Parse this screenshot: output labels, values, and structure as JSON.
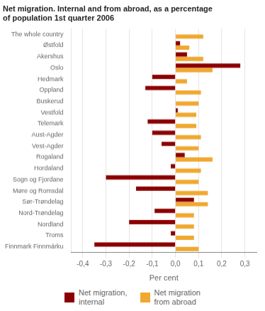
{
  "chart_data": {
    "type": "bar",
    "orientation": "horizontal",
    "title": "Net migration. Internal and from abroad, as a percentage\nof population 1st quarter 2006",
    "categories": [
      "The whole country",
      "Østfold",
      "Akershus",
      "Oslo",
      "Hedmark",
      "Oppland",
      "Buskerud",
      "Vestfold",
      "Telemark",
      "Aust-Agder",
      "Vest-Agder",
      "Rogaland",
      "Hordaland",
      "Sogn og Fjordane",
      "Møre og Romsdal",
      "Sør-Trøndelag",
      "Nord-Trøndelag",
      "Nordland",
      "Troms",
      "Finnmark Finnmárku"
    ],
    "series": [
      {
        "name": "Net migration,\ninternal",
        "color": "#8B0000",
        "values": [
          0.0,
          0.02,
          0.05,
          0.28,
          -0.1,
          -0.13,
          0.0,
          0.01,
          -0.12,
          -0.1,
          -0.06,
          0.04,
          -0.02,
          -0.3,
          -0.17,
          0.08,
          -0.09,
          -0.2,
          -0.02,
          -0.35
        ]
      },
      {
        "name": "Net migration\nfrom abroad",
        "color": "#F0A830",
        "values": [
          0.12,
          0.06,
          0.12,
          0.16,
          0.05,
          0.11,
          0.1,
          0.09,
          0.09,
          0.11,
          0.1,
          0.16,
          0.11,
          0.1,
          0.14,
          0.14,
          0.08,
          0.08,
          0.08,
          0.1
        ]
      }
    ],
    "xlabel": "Per cent",
    "xlim": [
      -0.45,
      0.35
    ],
    "xticks": [
      {
        "value": -0.4,
        "label": "-0,4"
      },
      {
        "value": -0.3,
        "label": "-0,3"
      },
      {
        "value": -0.2,
        "label": "-0,2"
      },
      {
        "value": -0.1,
        "label": "-0,1"
      },
      {
        "value": 0.0,
        "label": "0,0"
      },
      {
        "value": 0.1,
        "label": "0,1"
      },
      {
        "value": 0.2,
        "label": "0,2"
      },
      {
        "value": 0.3,
        "label": "0,3"
      }
    ],
    "grid": true,
    "legend": "bottom"
  }
}
